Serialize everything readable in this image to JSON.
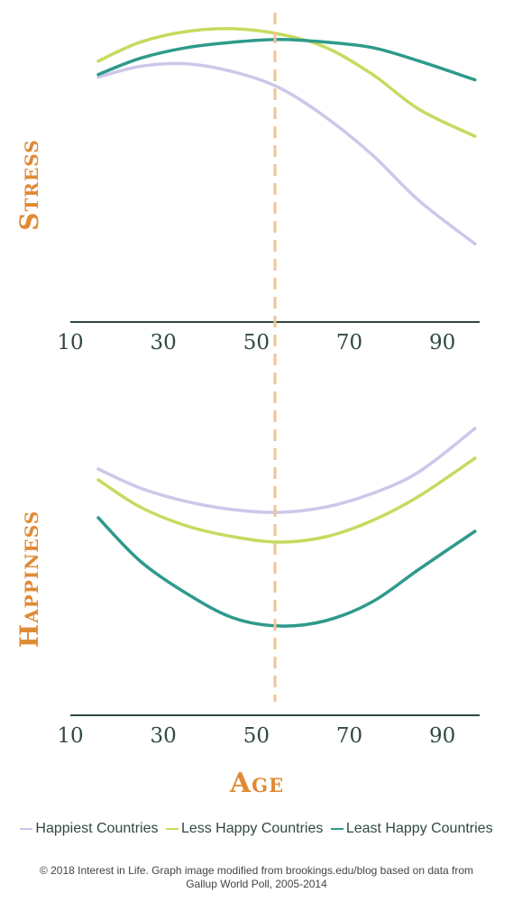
{
  "chart_data": [
    {
      "type": "line",
      "ylabel": "Stress",
      "xlabel": "",
      "title": "",
      "xlim": [
        10,
        98
      ],
      "ylim": [
        0,
        100
      ],
      "x_ticks": [
        10,
        30,
        50,
        70,
        90
      ],
      "reference_line_x": 54,
      "series": [
        {
          "name": "Happiest Countries",
          "color": "#cdc7ea",
          "x": [
            16,
            25,
            35,
            45,
            55,
            65,
            75,
            85,
            97
          ],
          "y": [
            78,
            82,
            83,
            80,
            74,
            63,
            49,
            32,
            16
          ]
        },
        {
          "name": "Less Happy Countries",
          "color": "#c5db5f",
          "x": [
            16,
            25,
            35,
            45,
            55,
            65,
            75,
            85,
            97
          ],
          "y": [
            84,
            91,
            95,
            96,
            94,
            89,
            79,
            66,
            56
          ]
        },
        {
          "name": "Least Happy Countries",
          "color": "#2e9a8a",
          "x": [
            16,
            25,
            35,
            45,
            55,
            65,
            75,
            85,
            97
          ],
          "y": [
            79,
            85,
            89,
            91,
            92,
            91,
            89,
            84,
            77
          ]
        }
      ]
    },
    {
      "type": "line",
      "ylabel": "Happiness",
      "xlabel": "Age",
      "title": "",
      "xlim": [
        10,
        98
      ],
      "ylim": [
        0,
        100
      ],
      "x_ticks": [
        10,
        30,
        50,
        70,
        90
      ],
      "reference_line_x": 54,
      "series": [
        {
          "name": "Happiest Countries",
          "color": "#cdc7ea",
          "x": [
            16,
            25,
            35,
            45,
            55,
            65,
            75,
            85,
            97
          ],
          "y": [
            80,
            73,
            68,
            65,
            64,
            66,
            71,
            79,
            95
          ]
        },
        {
          "name": "Less Happy Countries",
          "color": "#c5db5f",
          "x": [
            16,
            25,
            35,
            45,
            55,
            65,
            75,
            85,
            97
          ],
          "y": [
            76,
            66,
            59,
            55,
            53,
            55,
            61,
            70,
            84
          ]
        },
        {
          "name": "Least Happy Countries",
          "color": "#2e9a8a",
          "x": [
            16,
            25,
            35,
            45,
            55,
            65,
            75,
            85,
            97
          ],
          "y": [
            62,
            46,
            34,
            25,
            22,
            24,
            31,
            43,
            57
          ]
        }
      ]
    }
  ],
  "legend": [
    {
      "label": "Happiest Countries",
      "color": "#cdc7ea"
    },
    {
      "label": "Less Happy Countries",
      "color": "#c5db5f"
    },
    {
      "label": "Least Happy Countries",
      "color": "#2e9a8a"
    }
  ],
  "credit": "© 2018 Interest in Life. Graph image modified from brookings.edu/blog based on data from Gallup World Poll, 2005-2014",
  "colors": {
    "axis": "#2f4a3e",
    "reference_line": "#f2c394",
    "label": "#e08a35"
  }
}
